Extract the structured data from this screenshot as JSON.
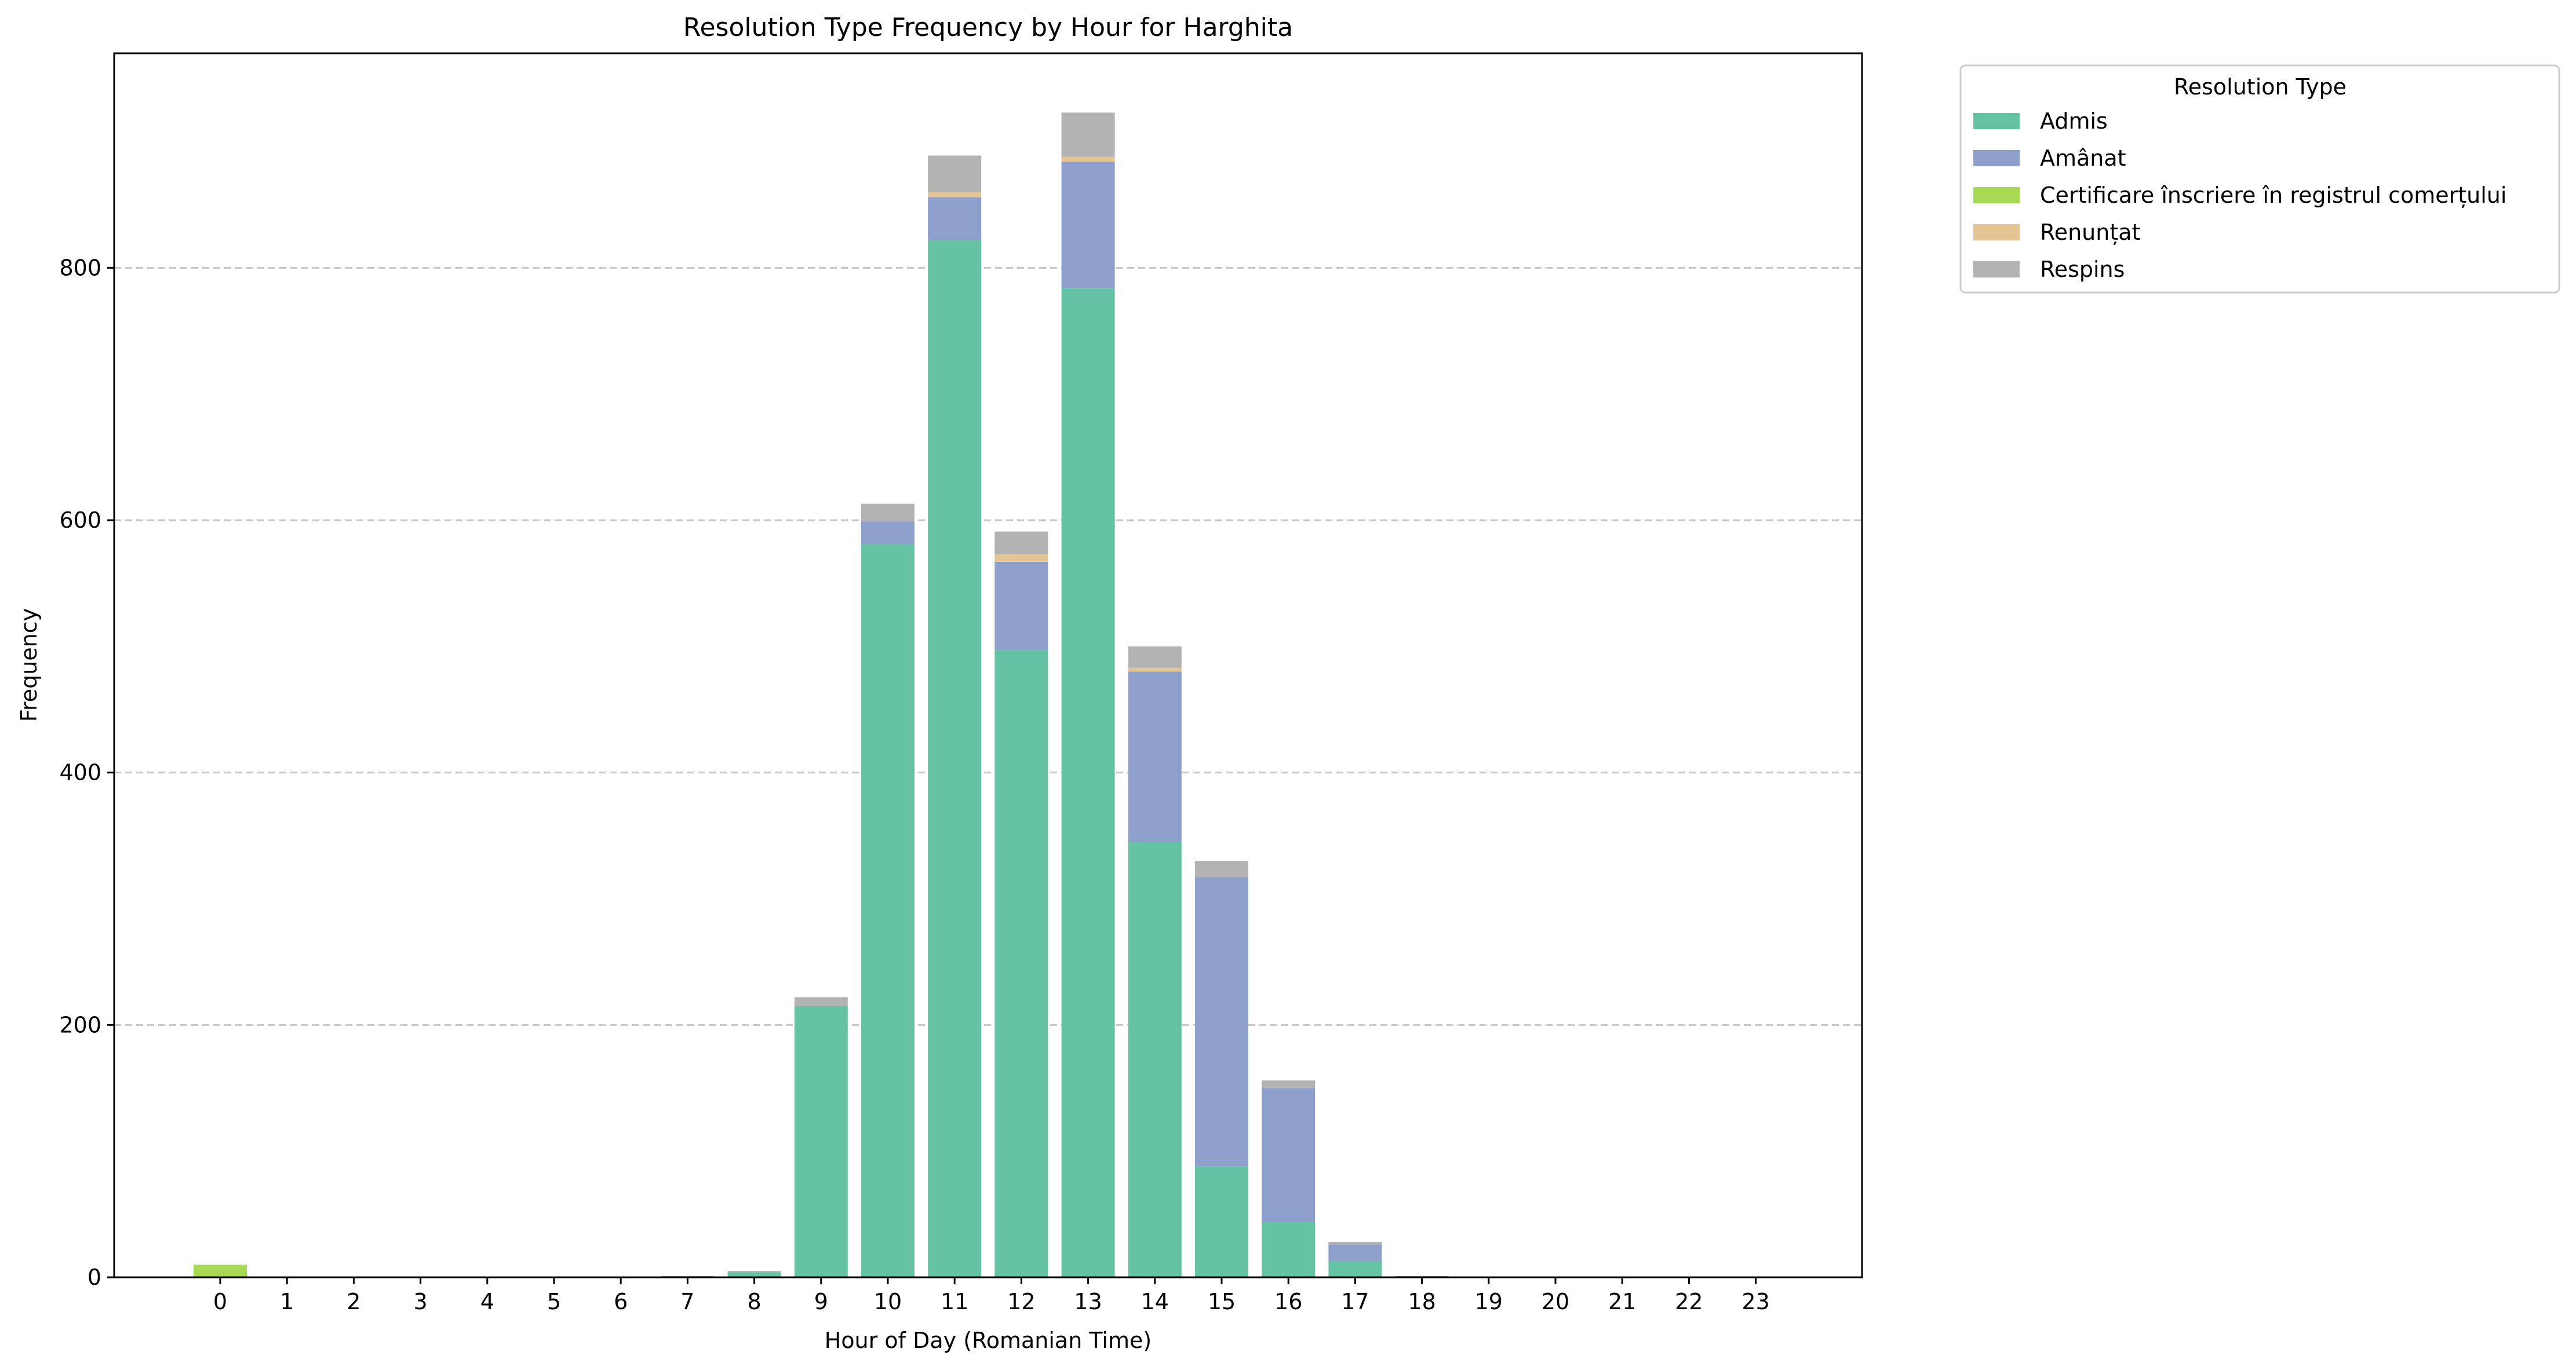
{
  "chart_data": {
    "type": "bar",
    "stacked": true,
    "title": "Resolution Type Frequency by Hour for Harghita",
    "xlabel": "Hour of Day (Romanian Time)",
    "ylabel": "Frequency",
    "ylim": [
      0,
      970
    ],
    "yticks": [
      0,
      200,
      400,
      600,
      800
    ],
    "grid": "y-dashed",
    "categories": [
      "0",
      "1",
      "2",
      "3",
      "4",
      "5",
      "6",
      "7",
      "8",
      "9",
      "10",
      "11",
      "12",
      "13",
      "14",
      "15",
      "16",
      "17",
      "18",
      "19",
      "20",
      "21",
      "22",
      "23"
    ],
    "legend": {
      "title": "Resolution Type",
      "position": "outside-top-right"
    },
    "series": [
      {
        "name": "Admis",
        "color": "#66c2a5",
        "values": [
          0,
          0,
          0,
          0,
          0,
          0,
          0,
          1,
          4,
          215,
          581,
          822,
          497,
          784,
          345,
          88,
          44,
          13,
          1,
          0,
          0,
          0,
          0,
          0
        ]
      },
      {
        "name": "Amânat",
        "color": "#8da0cb",
        "values": [
          0,
          0,
          0,
          0,
          0,
          0,
          0,
          0,
          0,
          0,
          18,
          34,
          70,
          100,
          135,
          229,
          106,
          13,
          0,
          0,
          0,
          0,
          0,
          0
        ]
      },
      {
        "name": "Certificare înscriere în registrul comerțului",
        "color": "#a6d854",
        "values": [
          10,
          0,
          0,
          0,
          0,
          0,
          0,
          0,
          0,
          0,
          0,
          0,
          0,
          0,
          0,
          0,
          0,
          0,
          0,
          0,
          0,
          0,
          0,
          0
        ]
      },
      {
        "name": "Renunțat",
        "color": "#e5c494",
        "values": [
          0,
          0,
          0,
          0,
          0,
          0,
          0,
          0,
          0,
          0,
          0,
          4,
          6,
          4,
          3,
          0,
          0,
          0,
          0,
          0,
          0,
          0,
          0,
          0
        ]
      },
      {
        "name": "Respins",
        "color": "#b3b3b3",
        "values": [
          0,
          0,
          0,
          0,
          0,
          0,
          0,
          0,
          1,
          7,
          14,
          29,
          18,
          35,
          17,
          13,
          6,
          2,
          0,
          0,
          0,
          0,
          0,
          0
        ]
      }
    ]
  }
}
